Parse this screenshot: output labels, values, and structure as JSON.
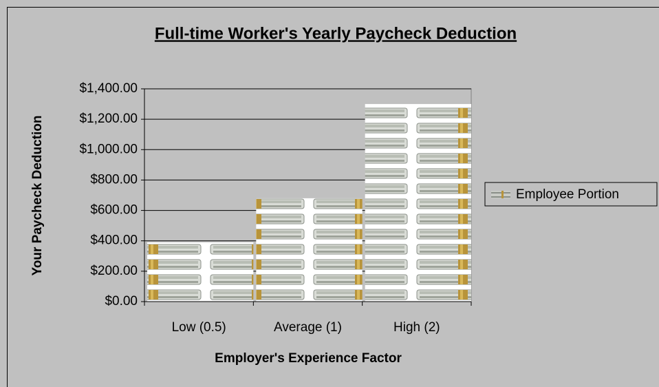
{
  "chart_data": {
    "type": "bar",
    "title": "Full-time Worker's Yearly Paycheck Deduction",
    "x_label": "Employer's Experience Factor",
    "y_label": "Your Paycheck Deduction",
    "categories": [
      "Low (0.5)",
      "Average (1)",
      "High (2)"
    ],
    "series": [
      {
        "name": "Employee Portion",
        "values": [
          390,
          680,
          1300
        ]
      }
    ],
    "ylim": [
      0,
      1400
    ],
    "yticks": [
      {
        "value": 0,
        "label": "$0.00"
      },
      {
        "value": 200,
        "label": "$200.00"
      },
      {
        "value": 400,
        "label": "$400.00"
      },
      {
        "value": 600,
        "label": "$600.00"
      },
      {
        "value": 800,
        "label": "$800.00"
      },
      {
        "value": 1000,
        "label": "$1,000.00"
      },
      {
        "value": 1200,
        "label": "$1,200.00"
      },
      {
        "value": 1400,
        "label": "$1,400.00"
      }
    ],
    "grid": true
  }
}
